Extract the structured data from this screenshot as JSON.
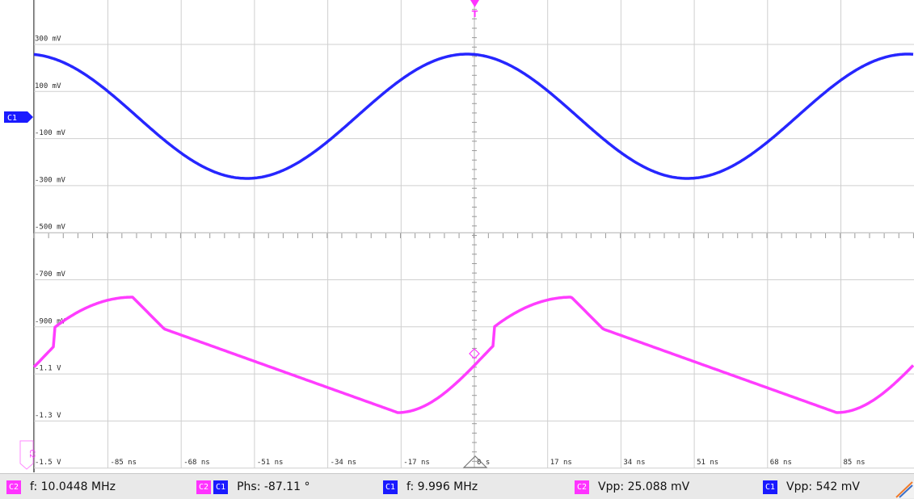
{
  "trigger": {
    "label": "T",
    "color": "#ff33ff"
  },
  "channels": {
    "c1": {
      "label": "C1",
      "color": "#1a1aff"
    },
    "c2": {
      "label": "C2",
      "color": "#ff33ff"
    }
  },
  "grid": {
    "y_labels": [
      "300 mV",
      "100 mV",
      "-100 mV",
      "-300 mV",
      "-500 mV",
      "-700 mV",
      "-900 mV",
      "-1.1 V",
      "-1.3 V",
      "-1.5 V"
    ],
    "x_labels": [
      "-85 ns",
      "-68 ns",
      "-51 ns",
      "-34 ns",
      "-17 ns",
      "0 s",
      "17 ns",
      "34 ns",
      "51 ns",
      "68 ns",
      "85 ns"
    ]
  },
  "measurements": [
    {
      "badges": [
        "C2"
      ],
      "text": "f: 10.0448 MHz"
    },
    {
      "badges": [
        "C2",
        "C1"
      ],
      "text": "Phs: -87.11 °"
    },
    {
      "badges": [
        "C1"
      ],
      "text": "f: 9.996 MHz"
    },
    {
      "badges": [
        "C2"
      ],
      "text": "Vpp: 25.088 mV"
    },
    {
      "badges": [
        "C1"
      ],
      "text": "Vpp: 542 mV"
    }
  ]
}
